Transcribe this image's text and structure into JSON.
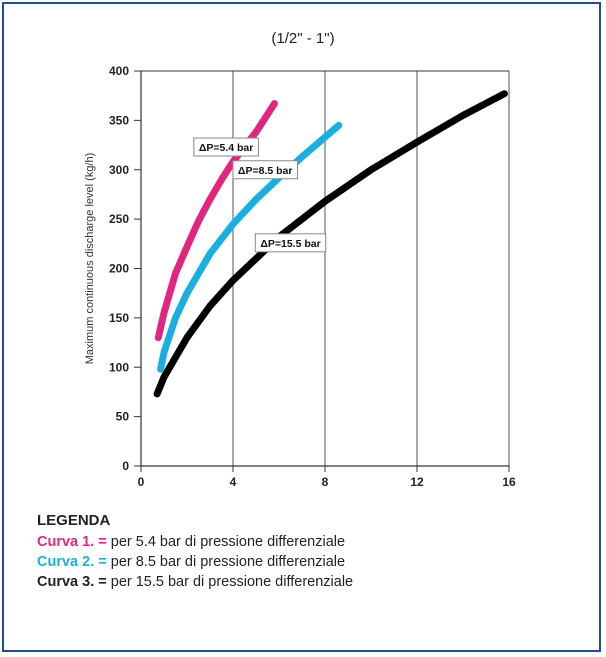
{
  "chart_data": {
    "type": "line",
    "title": "(1/2\" - 1\")",
    "xlabel": "",
    "ylabel": "Maximum continuous discharge level (kg/h)",
    "xlim": [
      0,
      16
    ],
    "ylim": [
      0,
      400
    ],
    "xticks": [
      0,
      4,
      8,
      12,
      16
    ],
    "yticks": [
      0,
      50,
      100,
      150,
      200,
      250,
      300,
      350,
      400
    ],
    "grid": "vertical",
    "series": [
      {
        "name": "ΔP=5.4 bar",
        "color": "#e0267e",
        "x": [
          0.75,
          1.0,
          1.5,
          2.0,
          2.5,
          3.0,
          3.5,
          4.0,
          4.5,
          5.0,
          5.5,
          5.8
        ],
        "y": [
          130,
          155,
          195,
          222,
          248,
          270,
          290,
          308,
          323,
          338,
          356,
          367
        ]
      },
      {
        "name": "ΔP=8.5 bar",
        "color": "#1bafe0",
        "x": [
          0.85,
          1.0,
          1.5,
          2.0,
          3.0,
          4.0,
          5.0,
          6.0,
          7.0,
          8.0,
          8.6
        ],
        "y": [
          98,
          115,
          150,
          175,
          215,
          245,
          270,
          292,
          313,
          333,
          345
        ]
      },
      {
        "name": "ΔP=15.5 bar",
        "color": "#000000",
        "x": [
          0.7,
          1.0,
          1.5,
          2.0,
          3.0,
          4.0,
          6.0,
          8.0,
          10.0,
          12.0,
          14.0,
          15.8
        ],
        "y": [
          73,
          90,
          110,
          130,
          162,
          188,
          232,
          268,
          300,
          328,
          355,
          377
        ]
      }
    ],
    "annotations": [
      {
        "text": "ΔP=5.4 bar",
        "x": 3.7,
        "y": 323
      },
      {
        "text": "ΔP=8.5 bar",
        "x": 5.4,
        "y": 300
      },
      {
        "text": "ΔP=15.5 bar",
        "x": 6.5,
        "y": 226
      }
    ]
  },
  "legend": {
    "heading": "LEGENDA",
    "rows": [
      {
        "key": "Curva 1. =",
        "text": "per 5.4 bar di pressione differenziale",
        "color": "#e0267e"
      },
      {
        "key": "Curva 2. =",
        "text": "per 8.5 bar di pressione differenziale",
        "color": "#1bafe0"
      },
      {
        "key": "Curva 3. =",
        "text": "per 15.5 bar di pressione differenziale",
        "color": "#222222"
      }
    ]
  }
}
